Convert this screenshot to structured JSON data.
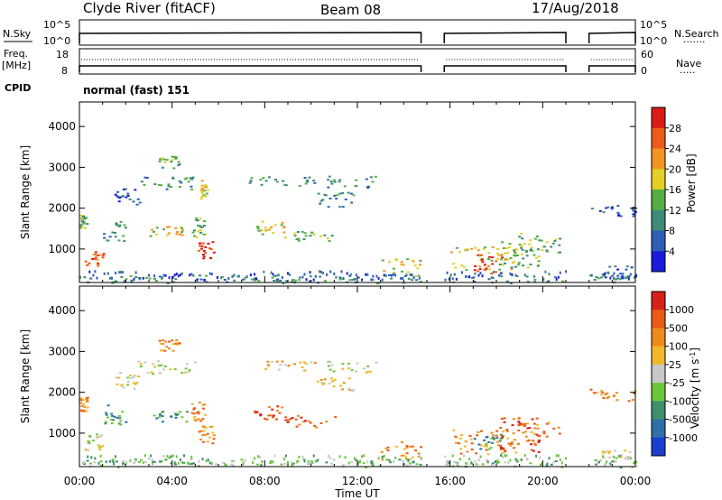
{
  "header": {
    "station": "Clyde River (fitACF)",
    "beam": "Beam 08",
    "date": "17/Aug/2018"
  },
  "param_rows": {
    "nsky_label": "N.Sky",
    "nsearch_label": "N.Search",
    "nsearch_key": "·······",
    "freq_label_1": "Freq.",
    "freq_label_2": "[MHz]",
    "nave_label": "Nave",
    "nave_key": "·····",
    "cpid_label": "CPID",
    "cpid_text": "normal (fast) 151",
    "noise_ticks_left": [
      "10^5",
      "10^0"
    ],
    "noise_ticks_right": [
      "10^5",
      "10^0"
    ],
    "freq_ticks": [
      "18",
      "8"
    ],
    "nave_ticks": [
      "60",
      "0"
    ]
  },
  "chart_data": [
    {
      "type": "heatmap",
      "name": "power",
      "ylabel": "Slant Range [km]",
      "xlabel": "",
      "y_ticks": [
        1000,
        2000,
        3000,
        4000
      ],
      "ylim": [
        180,
        4600
      ],
      "x_ticks": [
        "00:00",
        "04:00",
        "08:00",
        "12:00",
        "16:00",
        "20:00",
        "00:00"
      ],
      "xlim_hours": [
        0,
        24
      ],
      "colorbar": {
        "label": "Power [dB]",
        "ticks": [
          "4",
          "8",
          "12",
          "16",
          "20",
          "24",
          "28"
        ],
        "colors": [
          "#1a1adb",
          "#2e5fb4",
          "#3d8a78",
          "#55ad45",
          "#e3cf25",
          "#f39420",
          "#ec5b17",
          "#d81c15"
        ]
      },
      "data_gaps_hours": [
        [
          14.75,
          15.75
        ],
        [
          21.0,
          22.0
        ]
      ],
      "echo_regions": [
        {
          "t": [
            0.2,
            1.0
          ],
          "r": [
            600,
            1000
          ],
          "level": 6
        },
        {
          "t": [
            0.0,
            0.3
          ],
          "r": [
            1500,
            1900
          ],
          "level": 3
        },
        {
          "t": [
            1.0,
            2.0
          ],
          "r": [
            1200,
            1700
          ],
          "level": 2
        },
        {
          "t": [
            1.5,
            2.6
          ],
          "r": [
            2100,
            2500
          ],
          "level": 1
        },
        {
          "t": [
            3.0,
            4.6
          ],
          "r": [
            1300,
            1600
          ],
          "level": 4
        },
        {
          "t": [
            2.5,
            5.0
          ],
          "r": [
            2450,
            2800
          ],
          "level": 2
        },
        {
          "t": [
            3.4,
            4.3
          ],
          "r": [
            3000,
            3300
          ],
          "level": 3
        },
        {
          "t": [
            4.8,
            5.4
          ],
          "r": [
            1300,
            1800
          ],
          "level": 3
        },
        {
          "t": [
            5.1,
            5.8
          ],
          "r": [
            750,
            1200
          ],
          "level": 7
        },
        {
          "t": [
            5.2,
            5.5
          ],
          "r": [
            2250,
            2700
          ],
          "level": 4
        },
        {
          "t": [
            7.5,
            8.8
          ],
          "r": [
            1350,
            1700
          ],
          "level": 4
        },
        {
          "t": [
            7.3,
            10.2
          ],
          "r": [
            2550,
            2800
          ],
          "level": 2
        },
        {
          "t": [
            8.8,
            11.0
          ],
          "r": [
            1150,
            1450
          ],
          "level": 3
        },
        {
          "t": [
            10.2,
            11.8
          ],
          "r": [
            2050,
            2400
          ],
          "level": 2
        },
        {
          "t": [
            10.5,
            12.8
          ],
          "r": [
            2500,
            2800
          ],
          "level": 2
        },
        {
          "t": [
            13.0,
            14.7
          ],
          "r": [
            350,
            800
          ],
          "level": 4
        },
        {
          "t": [
            16.0,
            18.8
          ],
          "r": [
            500,
            1100
          ],
          "level": 4
        },
        {
          "t": [
            17.0,
            18.2
          ],
          "r": [
            400,
            900
          ],
          "level": 7
        },
        {
          "t": [
            18.0,
            19.8
          ],
          "r": [
            550,
            1400
          ],
          "level": 3
        },
        {
          "t": [
            19.0,
            20.8
          ],
          "r": [
            900,
            1300
          ],
          "level": 3
        },
        {
          "t": [
            22.5,
            23.8
          ],
          "r": [
            300,
            600
          ],
          "level": 1
        },
        {
          "t": [
            22.0,
            24.0
          ],
          "r": [
            1800,
            2100
          ],
          "level": 1
        },
        {
          "t": [
            0.0,
            24.0
          ],
          "r": [
            180,
            380
          ],
          "level": 2
        }
      ]
    },
    {
      "type": "heatmap",
      "name": "velocity",
      "ylabel": "Slant Range [km]",
      "xlabel": "Time UT",
      "y_ticks": [
        1000,
        2000,
        3000,
        4000
      ],
      "ylim": [
        180,
        4600
      ],
      "x_ticks": [
        "00:00",
        "04:00",
        "08:00",
        "12:00",
        "16:00",
        "20:00",
        "00:00"
      ],
      "xlim_hours": [
        0,
        24
      ],
      "colorbar": {
        "label": "Velocity [m s",
        "label_sup": "-1",
        "label_tail": "]",
        "ticks": [
          "1000",
          "500",
          "100",
          "25",
          "-25",
          "-100",
          "-500",
          "-1000"
        ],
        "colors": [
          "#1a3ed0",
          "#2e6fa8",
          "#3e8f6a",
          "#6bc83a",
          "#c8c8c8",
          "#f1b82a",
          "#ef8a1d",
          "#e85a15",
          "#d8201a"
        ]
      },
      "data_gaps_hours": [
        [
          14.75,
          15.75
        ],
        [
          21.0,
          22.0
        ]
      ],
      "echo_regions": [
        {
          "t": [
            0.2,
            1.0
          ],
          "r": [
            600,
            1000
          ],
          "level": 4
        },
        {
          "t": [
            0.0,
            0.3
          ],
          "r": [
            1500,
            1900
          ],
          "level": 6
        },
        {
          "t": [
            1.0,
            2.0
          ],
          "r": [
            1200,
            1700
          ],
          "level": 2
        },
        {
          "t": [
            1.5,
            2.6
          ],
          "r": [
            2100,
            2500
          ],
          "level": 4
        },
        {
          "t": [
            3.0,
            4.6
          ],
          "r": [
            1300,
            1600
          ],
          "level": 2
        },
        {
          "t": [
            2.5,
            5.0
          ],
          "r": [
            2450,
            2800
          ],
          "level": 4
        },
        {
          "t": [
            3.4,
            4.3
          ],
          "r": [
            3000,
            3300
          ],
          "level": 6
        },
        {
          "t": [
            4.8,
            5.4
          ],
          "r": [
            1300,
            1800
          ],
          "level": 6
        },
        {
          "t": [
            5.1,
            5.8
          ],
          "r": [
            750,
            1200
          ],
          "level": 6
        },
        {
          "t": [
            7.5,
            8.8
          ],
          "r": [
            1350,
            1700
          ],
          "level": 7
        },
        {
          "t": [
            7.3,
            10.2
          ],
          "r": [
            2550,
            2800
          ],
          "level": 5
        },
        {
          "t": [
            8.8,
            11.0
          ],
          "r": [
            1150,
            1450
          ],
          "level": 7
        },
        {
          "t": [
            10.2,
            11.8
          ],
          "r": [
            2050,
            2400
          ],
          "level": 5
        },
        {
          "t": [
            10.5,
            12.8
          ],
          "r": [
            2500,
            2800
          ],
          "level": 4
        },
        {
          "t": [
            13.0,
            14.7
          ],
          "r": [
            350,
            800
          ],
          "level": 6
        },
        {
          "t": [
            16.0,
            18.8
          ],
          "r": [
            500,
            1100
          ],
          "level": 6
        },
        {
          "t": [
            17.0,
            18.2
          ],
          "r": [
            600,
            1000
          ],
          "level": 2
        },
        {
          "t": [
            18.0,
            19.8
          ],
          "r": [
            550,
            1400
          ],
          "level": 7
        },
        {
          "t": [
            19.0,
            20.8
          ],
          "r": [
            900,
            1300
          ],
          "level": 6
        },
        {
          "t": [
            22.5,
            23.8
          ],
          "r": [
            300,
            600
          ],
          "level": 4
        },
        {
          "t": [
            22.0,
            24.0
          ],
          "r": [
            1800,
            2100
          ],
          "level": 6
        },
        {
          "t": [
            0.0,
            24.0
          ],
          "r": [
            180,
            380
          ],
          "level": 3
        }
      ]
    }
  ]
}
